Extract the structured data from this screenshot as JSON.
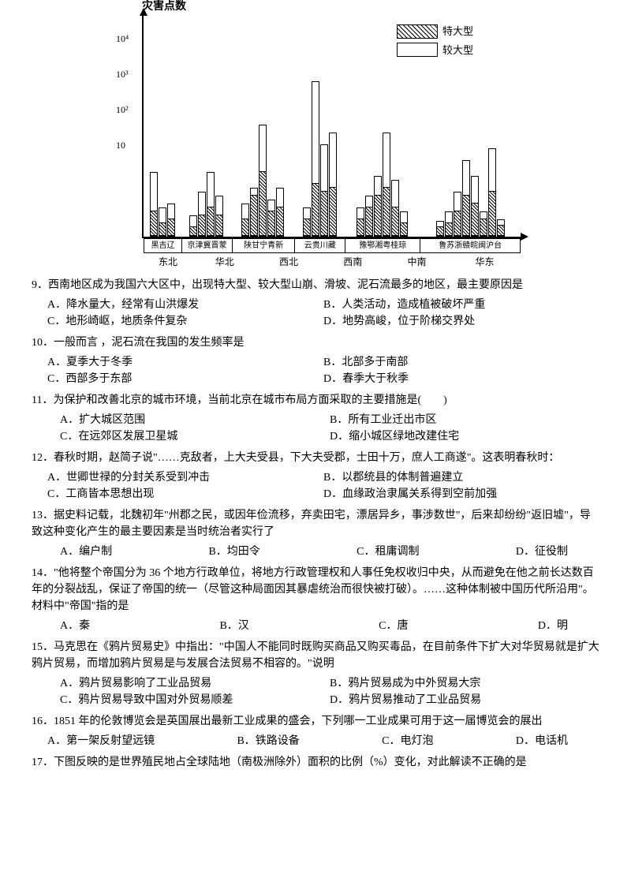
{
  "chart": {
    "y_axis_label": "灾害点数",
    "y_ticks": [
      "10⁴",
      "10³",
      "10²",
      "10"
    ],
    "y_tick_positions": [
      20,
      65,
      110,
      155
    ],
    "legend": {
      "hatched": "特大型",
      "plain": "较大型"
    },
    "provinces": [
      "黑吉辽",
      "京津冀晋蒙",
      "陕甘宁青新",
      "云贵川藏",
      "豫鄂湘粤桂琼",
      "鲁苏浙赣皖闽沪台"
    ],
    "regions": [
      "东北",
      "华北",
      "西北",
      "西南",
      "中南",
      "华东"
    ],
    "region_widths": [
      13,
      17,
      17,
      17,
      17,
      19
    ],
    "bars": [
      {
        "outer": 80,
        "inner": 30
      },
      {
        "outer": 35,
        "inner": 15
      },
      {
        "outer": 40,
        "inner": 20
      },
      {
        "outer": 25,
        "inner": 10
      },
      {
        "outer": 55,
        "inner": 25
      },
      {
        "outer": 80,
        "inner": 35
      },
      {
        "outer": 50,
        "inner": 25
      },
      {
        "outer": 40,
        "inner": 20
      },
      {
        "outer": 60,
        "inner": 50
      },
      {
        "outer": 140,
        "inner": 80
      },
      {
        "outer": 45,
        "inner": 30
      },
      {
        "outer": 60,
        "inner": 35
      },
      {
        "outer": 35,
        "inner": 20
      },
      {
        "outer": 195,
        "inner": 65
      },
      {
        "outer": 115,
        "inner": 55
      },
      {
        "outer": 130,
        "inner": 60
      },
      {
        "outer": 35,
        "inner": 20
      },
      {
        "outer": 50,
        "inner": 35
      },
      {
        "outer": 75,
        "inner": 50
      },
      {
        "outer": 130,
        "inner": 60
      },
      {
        "outer": 70,
        "inner": 35
      },
      {
        "outer": 30,
        "inner": 15
      },
      {
        "outer": 18,
        "inner": 10
      },
      {
        "outer": 30,
        "inner": 15
      },
      {
        "outer": 55,
        "inner": 30
      },
      {
        "outer": 95,
        "inner": 50
      },
      {
        "outer": 75,
        "inner": 40
      },
      {
        "outer": 30,
        "inner": 20
      },
      {
        "outer": 110,
        "inner": 55
      },
      {
        "outer": 20,
        "inner": 12
      },
      {
        "outer": 40,
        "inner": 25
      }
    ]
  },
  "q9": {
    "text": "9．西南地区成为我国六大区中，出现特大型、较大型山崩、滑坡、泥石流最多的地区，最主要原因是",
    "a": "A．降水量大，经常有山洪爆发",
    "b": "B．人类活动，造成植被破坏严重",
    "c": "C．地形崎岖，地质条件复杂",
    "d": "D．地势高峻，位于阶梯交界处"
  },
  "q10": {
    "text": "10．一般而言 ，泥石流在我国的发生频率是",
    "a": "A．夏季大于冬季",
    "b": "B．北部多于南部",
    "c": "C．西部多于东部",
    "d": "D．春季大于秋季"
  },
  "q11": {
    "text": "11．为保护和改善北京的城市环境，当前北京在城市布局方面采取的主要措施是(　　)",
    "a": "A．扩大城区范围",
    "b": "B．所有工业迁出市区",
    "c": "C．在远郊区发展卫星城",
    "d": "D．缩小城区绿地改建住宅"
  },
  "q12": {
    "text": "12．春秋时期，赵简子说\"……克敌者，上大夫受县，下大夫受郡，士田十万，庶人工商遂\"。这表明春秋时：",
    "a": "A．世卿世禄的分封关系受到冲击",
    "b": "B．以郡统县的体制普遍建立",
    "c": "C．工商皆本思想出现",
    "d": "D．血缘政治隶属关系得到空前加强"
  },
  "q13": {
    "text": "13．据史料记载，北魏初年\"州郡之民，或因年俭流移，弃卖田宅，漂居异乡，事涉数世\"，后来却纷纷\"返旧墟\"，导致这种变化产生的最主要因素是当时统治者实行了",
    "a": "A．编户制",
    "b": "B．均田令",
    "c": "C．租庸调制",
    "d": "D．征役制"
  },
  "q14": {
    "text": "14．\"他将整个帝国分为 36 个地方行政单位，将地方行政管理权和人事任免权收归中央，从而避免在他之前长达数百年的分裂战乱，保证了帝国的统一（尽管这种局面因其暴虐统治而很快被打破）。……这种体制被中国历代所沿用\"。材料中\"帝国\"指的是",
    "a": "A．秦",
    "b": "B．汉",
    "c": "C．唐",
    "d": "D．明"
  },
  "q15": {
    "text": "15．马克思在《鸦片贸易史》中指出：\"中国人不能同时既购买商品又购买毒品，在目前条件下扩大对华贸易就是扩大鸦片贸易，而增加鸦片贸易是与发展合法贸易不相容的。\"说明",
    "a": "A．鸦片贸易影响了工业品贸易",
    "b": "B．鸦片贸易成为中外贸易大宗",
    "c": "C．鸦片贸易导致中国对外贸易顺差",
    "d": "D．鸦片贸易推动了工业品贸易"
  },
  "q16": {
    "text": "16．1851 年的伦敦博览会是英国展出最新工业成果的盛会，下列哪一工业成果可用于这一届博览会的展出",
    "a": "A．第一架反射望远镜",
    "b": "B．铁路设备",
    "c": "C．电灯泡",
    "d": "D．电话机"
  },
  "q17": {
    "text": "17．下图反映的是世界殖民地占全球陆地（南极洲除外）面积的比例（%）变化，对此解读不正确的是"
  }
}
